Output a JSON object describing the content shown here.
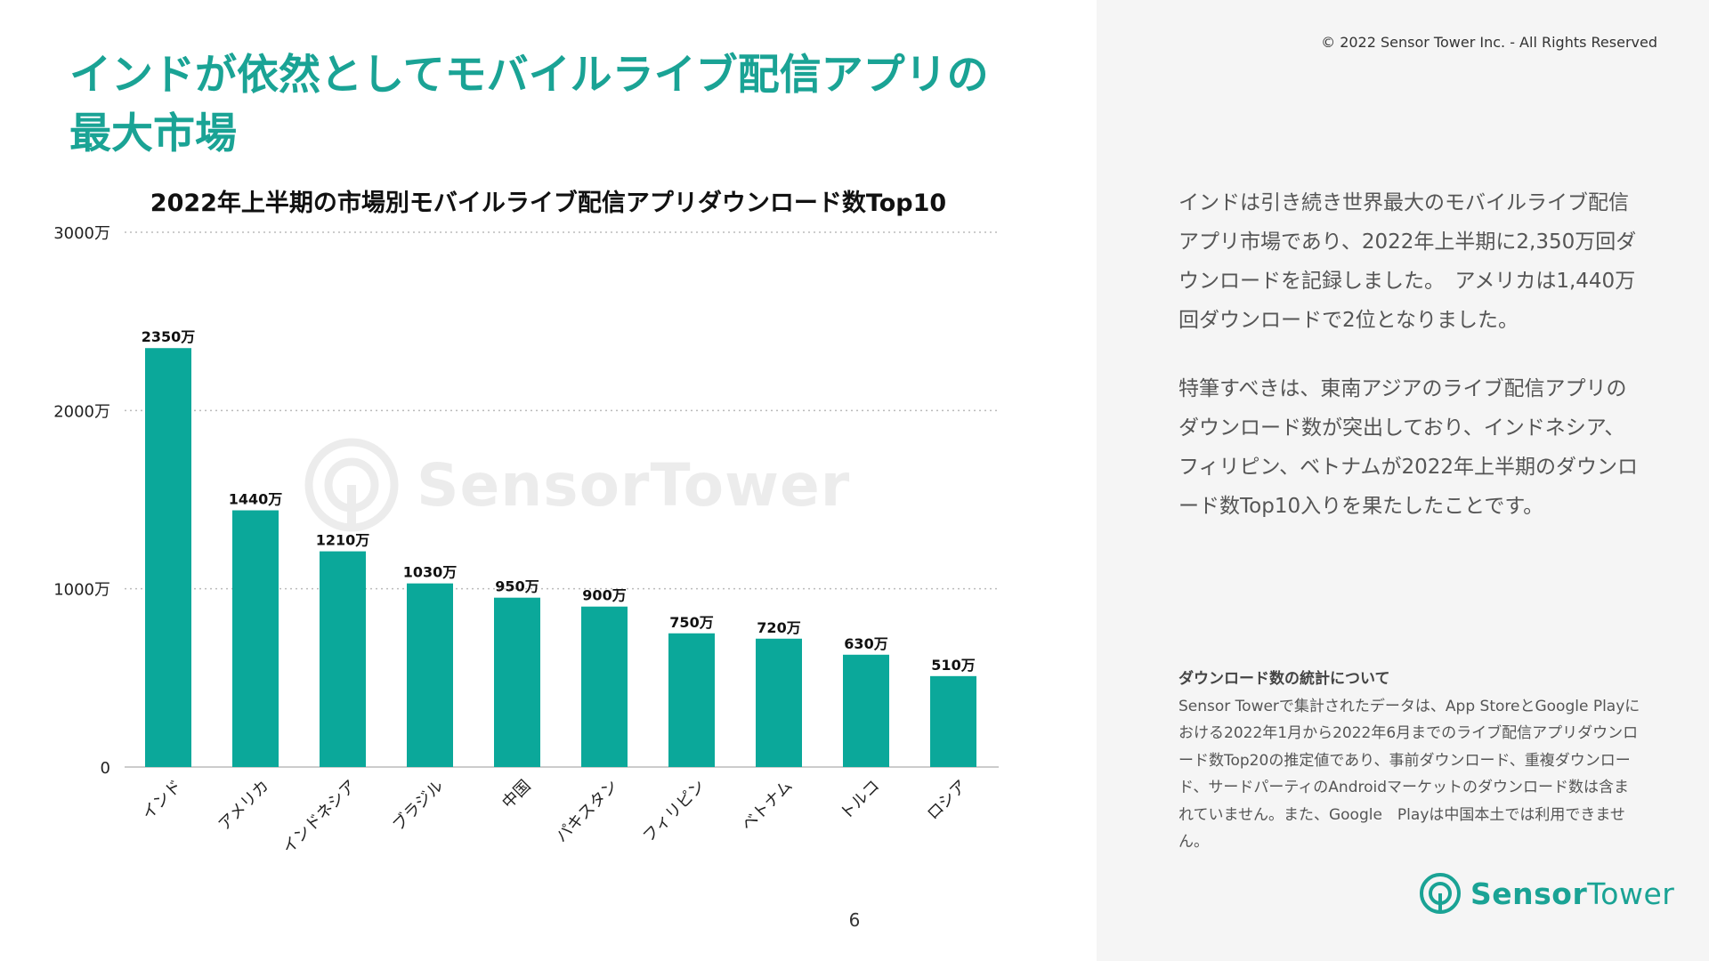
{
  "page": {
    "title_line1": "インドが依然としてモバイルライブ配信アプリの",
    "title_line2": "最大市場",
    "copyright": "© 2022 Sensor Tower Inc. - All Rights Reserved",
    "page_number": "6",
    "watermark": "SensorTower",
    "logo": {
      "part1": "Sensor",
      "part2": "Tower"
    },
    "description": [
      "インドは引き続き世界最大のモバイルライブ配信アプリ市場であり、2022年上半期に2,350万回ダウンロードを記録しました。　アメリカは1,440万回ダウンロードで2位となりました。",
      "特筆すべきは、東南アジアのライブ配信アプリのダウンロード数が突出しており、インドネシア、フィリピン、ベトナムが2022年上半期のダウンロード数Top10入りを果たしたことです。"
    ],
    "note_title": "ダウンロード数の統計について",
    "note_body": "Sensor Towerで集計されたデータは、App StoreとGoogle Playにおける2022年1月から2022年6月までのライブ配信アプリダウンロード数Top20の推定値であり、事前ダウンロード、重複ダウンロード、サードパーティのAndroidマーケットのダウンロード数は含まれていません。また、Google　Playは中国本土では利用できません。"
  },
  "colors": {
    "accent": "#1aa395",
    "bar": "#0ba89a",
    "grid": "#bbbbbb"
  },
  "chart_data": {
    "type": "bar",
    "title": "2022年上半期の市場別モバイルライブ配信アプリダウンロード数Top10",
    "categories": [
      "インド",
      "アメリカ",
      "インドネシア",
      "ブラジル",
      "中国",
      "パキスタン",
      "フィリピン",
      "ベトナム",
      "トルコ",
      "ロシア"
    ],
    "values": [
      2350,
      1440,
      1210,
      1030,
      950,
      900,
      750,
      720,
      630,
      510
    ],
    "value_labels": [
      "2350万",
      "1440万",
      "1210万",
      "1030万",
      "950万",
      "900万",
      "750万",
      "720万",
      "630万",
      "510万"
    ],
    "ylim": [
      0,
      3000
    ],
    "yticks": [
      0,
      1000,
      2000,
      3000
    ],
    "ytick_labels": [
      "0",
      "1000万",
      "2000万",
      "3000万"
    ],
    "grid": true,
    "legend": "none"
  }
}
